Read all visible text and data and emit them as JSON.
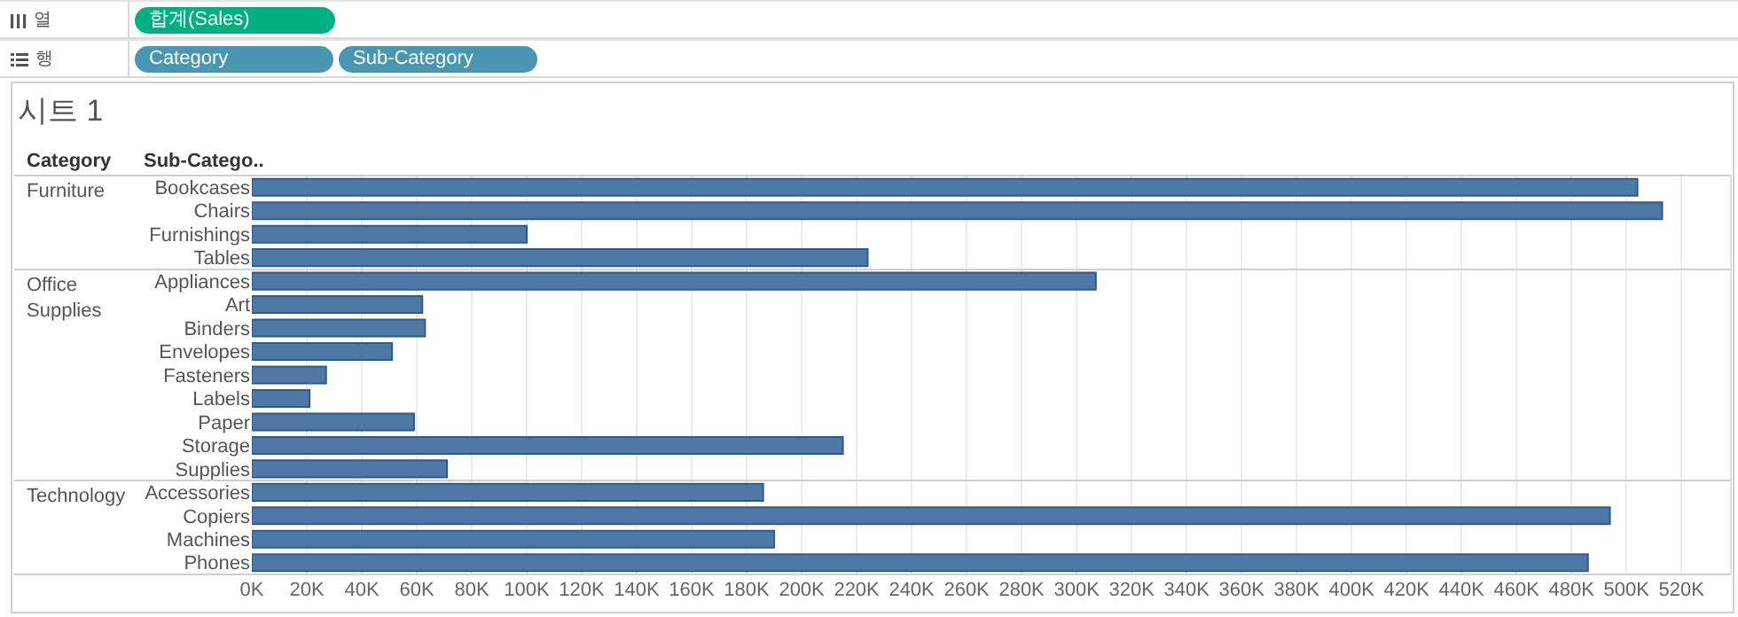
{
  "chart_data": {
    "type": "bar",
    "orientation": "horizontal",
    "title": "시트 1",
    "ylabel": "Sub-Catego..",
    "categories": [
      "Bookcases",
      "Chairs",
      "Furnishings",
      "Tables",
      "Appliances",
      "Art",
      "Binders",
      "Envelopes",
      "Fasteners",
      "Labels",
      "Paper",
      "Storage",
      "Supplies",
      "Accessories",
      "Copiers",
      "Machines",
      "Phones"
    ],
    "values": [
      504,
      513,
      100,
      224,
      307,
      62,
      63,
      51,
      27,
      21,
      59,
      215,
      71,
      186,
      494,
      190,
      486
    ],
    "color": "#4e79a7",
    "xlim": [
      0,
      538
    ],
    "xticks": [
      {
        "value": 0,
        "label": "0K"
      },
      {
        "value": 20,
        "label": "20K"
      },
      {
        "value": 40,
        "label": "40K"
      },
      {
        "value": 60,
        "label": "60K"
      },
      {
        "value": 80,
        "label": "80K"
      },
      {
        "value": 100,
        "label": "100K"
      },
      {
        "value": 120,
        "label": "120K"
      },
      {
        "value": 140,
        "label": "140K"
      },
      {
        "value": 160,
        "label": "160K"
      },
      {
        "value": 180,
        "label": "180K"
      },
      {
        "value": 200,
        "label": "200K"
      },
      {
        "value": 220,
        "label": "220K"
      },
      {
        "value": 240,
        "label": "240K"
      },
      {
        "value": 260,
        "label": "260K"
      },
      {
        "value": 280,
        "label": "280K"
      },
      {
        "value": 300,
        "label": "300K"
      },
      {
        "value": 320,
        "label": "320K"
      },
      {
        "value": 340,
        "label": "340K"
      },
      {
        "value": 360,
        "label": "360K"
      },
      {
        "value": 380,
        "label": "380K"
      },
      {
        "value": 400,
        "label": "400K"
      },
      {
        "value": 420,
        "label": "420K"
      },
      {
        "value": 440,
        "label": "440K"
      },
      {
        "value": 460,
        "label": "460K"
      },
      {
        "value": 480,
        "label": "480K"
      },
      {
        "value": 500,
        "label": "500K"
      },
      {
        "value": 520,
        "label": "520K"
      }
    ],
    "grid": "x",
    "annotations": [
      "열",
      "합계(Sales)",
      "행",
      "Category",
      "Sub-Category",
      "Category",
      "Furniture",
      "Office\nSupplies",
      "Technology"
    ]
  }
}
